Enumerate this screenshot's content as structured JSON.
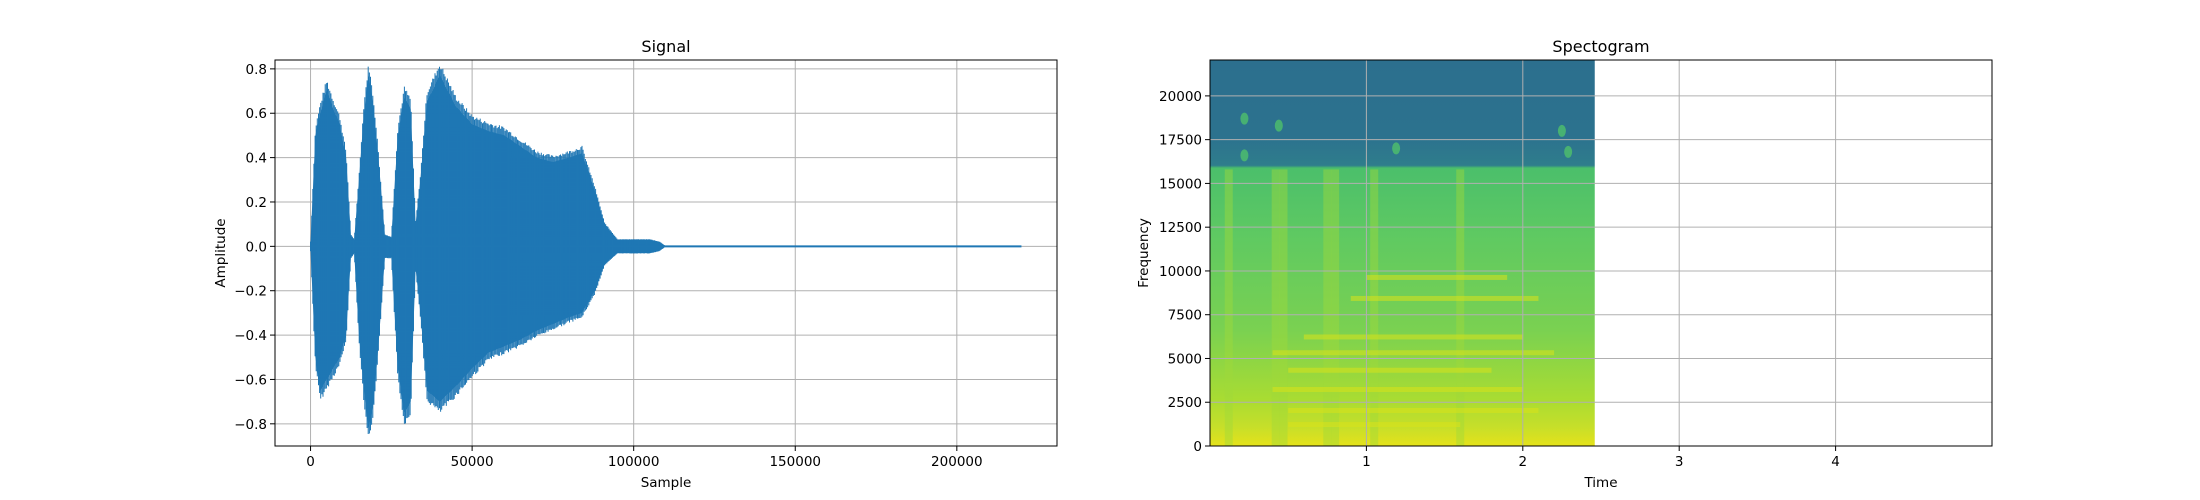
{
  "chart_data": [
    {
      "type": "line",
      "title": "Signal",
      "xlabel": "Sample",
      "ylabel": "Amplitude",
      "xlim": [
        -11000,
        231000
      ],
      "ylim": [
        -0.9,
        0.84
      ],
      "xticks": [
        0,
        50000,
        100000,
        150000,
        200000
      ],
      "xtick_labels": [
        "0",
        "50000",
        "100000",
        "150000",
        "200000"
      ],
      "yticks": [
        -0.8,
        -0.6,
        -0.4,
        -0.2,
        0.0,
        0.2,
        0.4,
        0.6,
        0.8
      ],
      "ytick_labels": [
        "−0.8",
        "−0.6",
        "−0.4",
        "−0.2",
        "0.0",
        "0.2",
        "0.4",
        "0.6",
        "0.8"
      ],
      "grid": true,
      "color": "#1f77b4",
      "series": [
        {
          "envelope_x": [
            0,
            1500,
            3000,
            5000,
            7000,
            9000,
            11000,
            12500,
            13500,
            15000,
            16500,
            18000,
            19500,
            21000,
            23000,
            25000,
            27000,
            29000,
            31000,
            32500,
            34000,
            36000,
            40000,
            45000,
            50000,
            55000,
            60000,
            65000,
            70000,
            75000,
            80000,
            84000,
            88000,
            91000,
            95000,
            100000,
            105000,
            108000,
            110000,
            220000
          ],
          "upper": [
            0.02,
            0.5,
            0.6,
            0.7,
            0.62,
            0.55,
            0.4,
            0.05,
            0.03,
            0.3,
            0.6,
            0.77,
            0.62,
            0.4,
            0.05,
            0.04,
            0.5,
            0.67,
            0.62,
            0.1,
            0.3,
            0.65,
            0.77,
            0.63,
            0.55,
            0.52,
            0.5,
            0.45,
            0.4,
            0.38,
            0.4,
            0.42,
            0.25,
            0.1,
            0.03,
            0.03,
            0.03,
            0.02,
            0.0,
            0.0
          ],
          "lower": [
            -0.02,
            -0.5,
            -0.65,
            -0.6,
            -0.55,
            -0.5,
            -0.4,
            -0.05,
            -0.03,
            -0.4,
            -0.65,
            -0.82,
            -0.7,
            -0.45,
            -0.05,
            -0.05,
            -0.55,
            -0.75,
            -0.7,
            -0.1,
            -0.3,
            -0.65,
            -0.7,
            -0.63,
            -0.55,
            -0.48,
            -0.45,
            -0.42,
            -0.38,
            -0.35,
            -0.32,
            -0.3,
            -0.2,
            -0.08,
            -0.03,
            -0.03,
            -0.03,
            -0.02,
            0.0,
            0.0
          ]
        }
      ]
    },
    {
      "type": "heatmap",
      "title": "Spectogram",
      "xlabel": "Time",
      "ylabel": "Frequency",
      "xlim": [
        0,
        5.0
      ],
      "ylim": [
        0,
        22050
      ],
      "data_xmax": 2.46,
      "xticks": [
        1,
        2,
        3,
        4
      ],
      "xtick_labels": [
        "1",
        "2",
        "3",
        "4"
      ],
      "yticks": [
        0,
        2500,
        5000,
        7500,
        10000,
        12500,
        15000,
        17500,
        20000
      ],
      "ytick_labels": [
        "0",
        "2500",
        "5000",
        "7500",
        "10000",
        "12500",
        "15000",
        "17500",
        "20000"
      ],
      "grid": true,
      "colormap": "viridis"
    }
  ]
}
